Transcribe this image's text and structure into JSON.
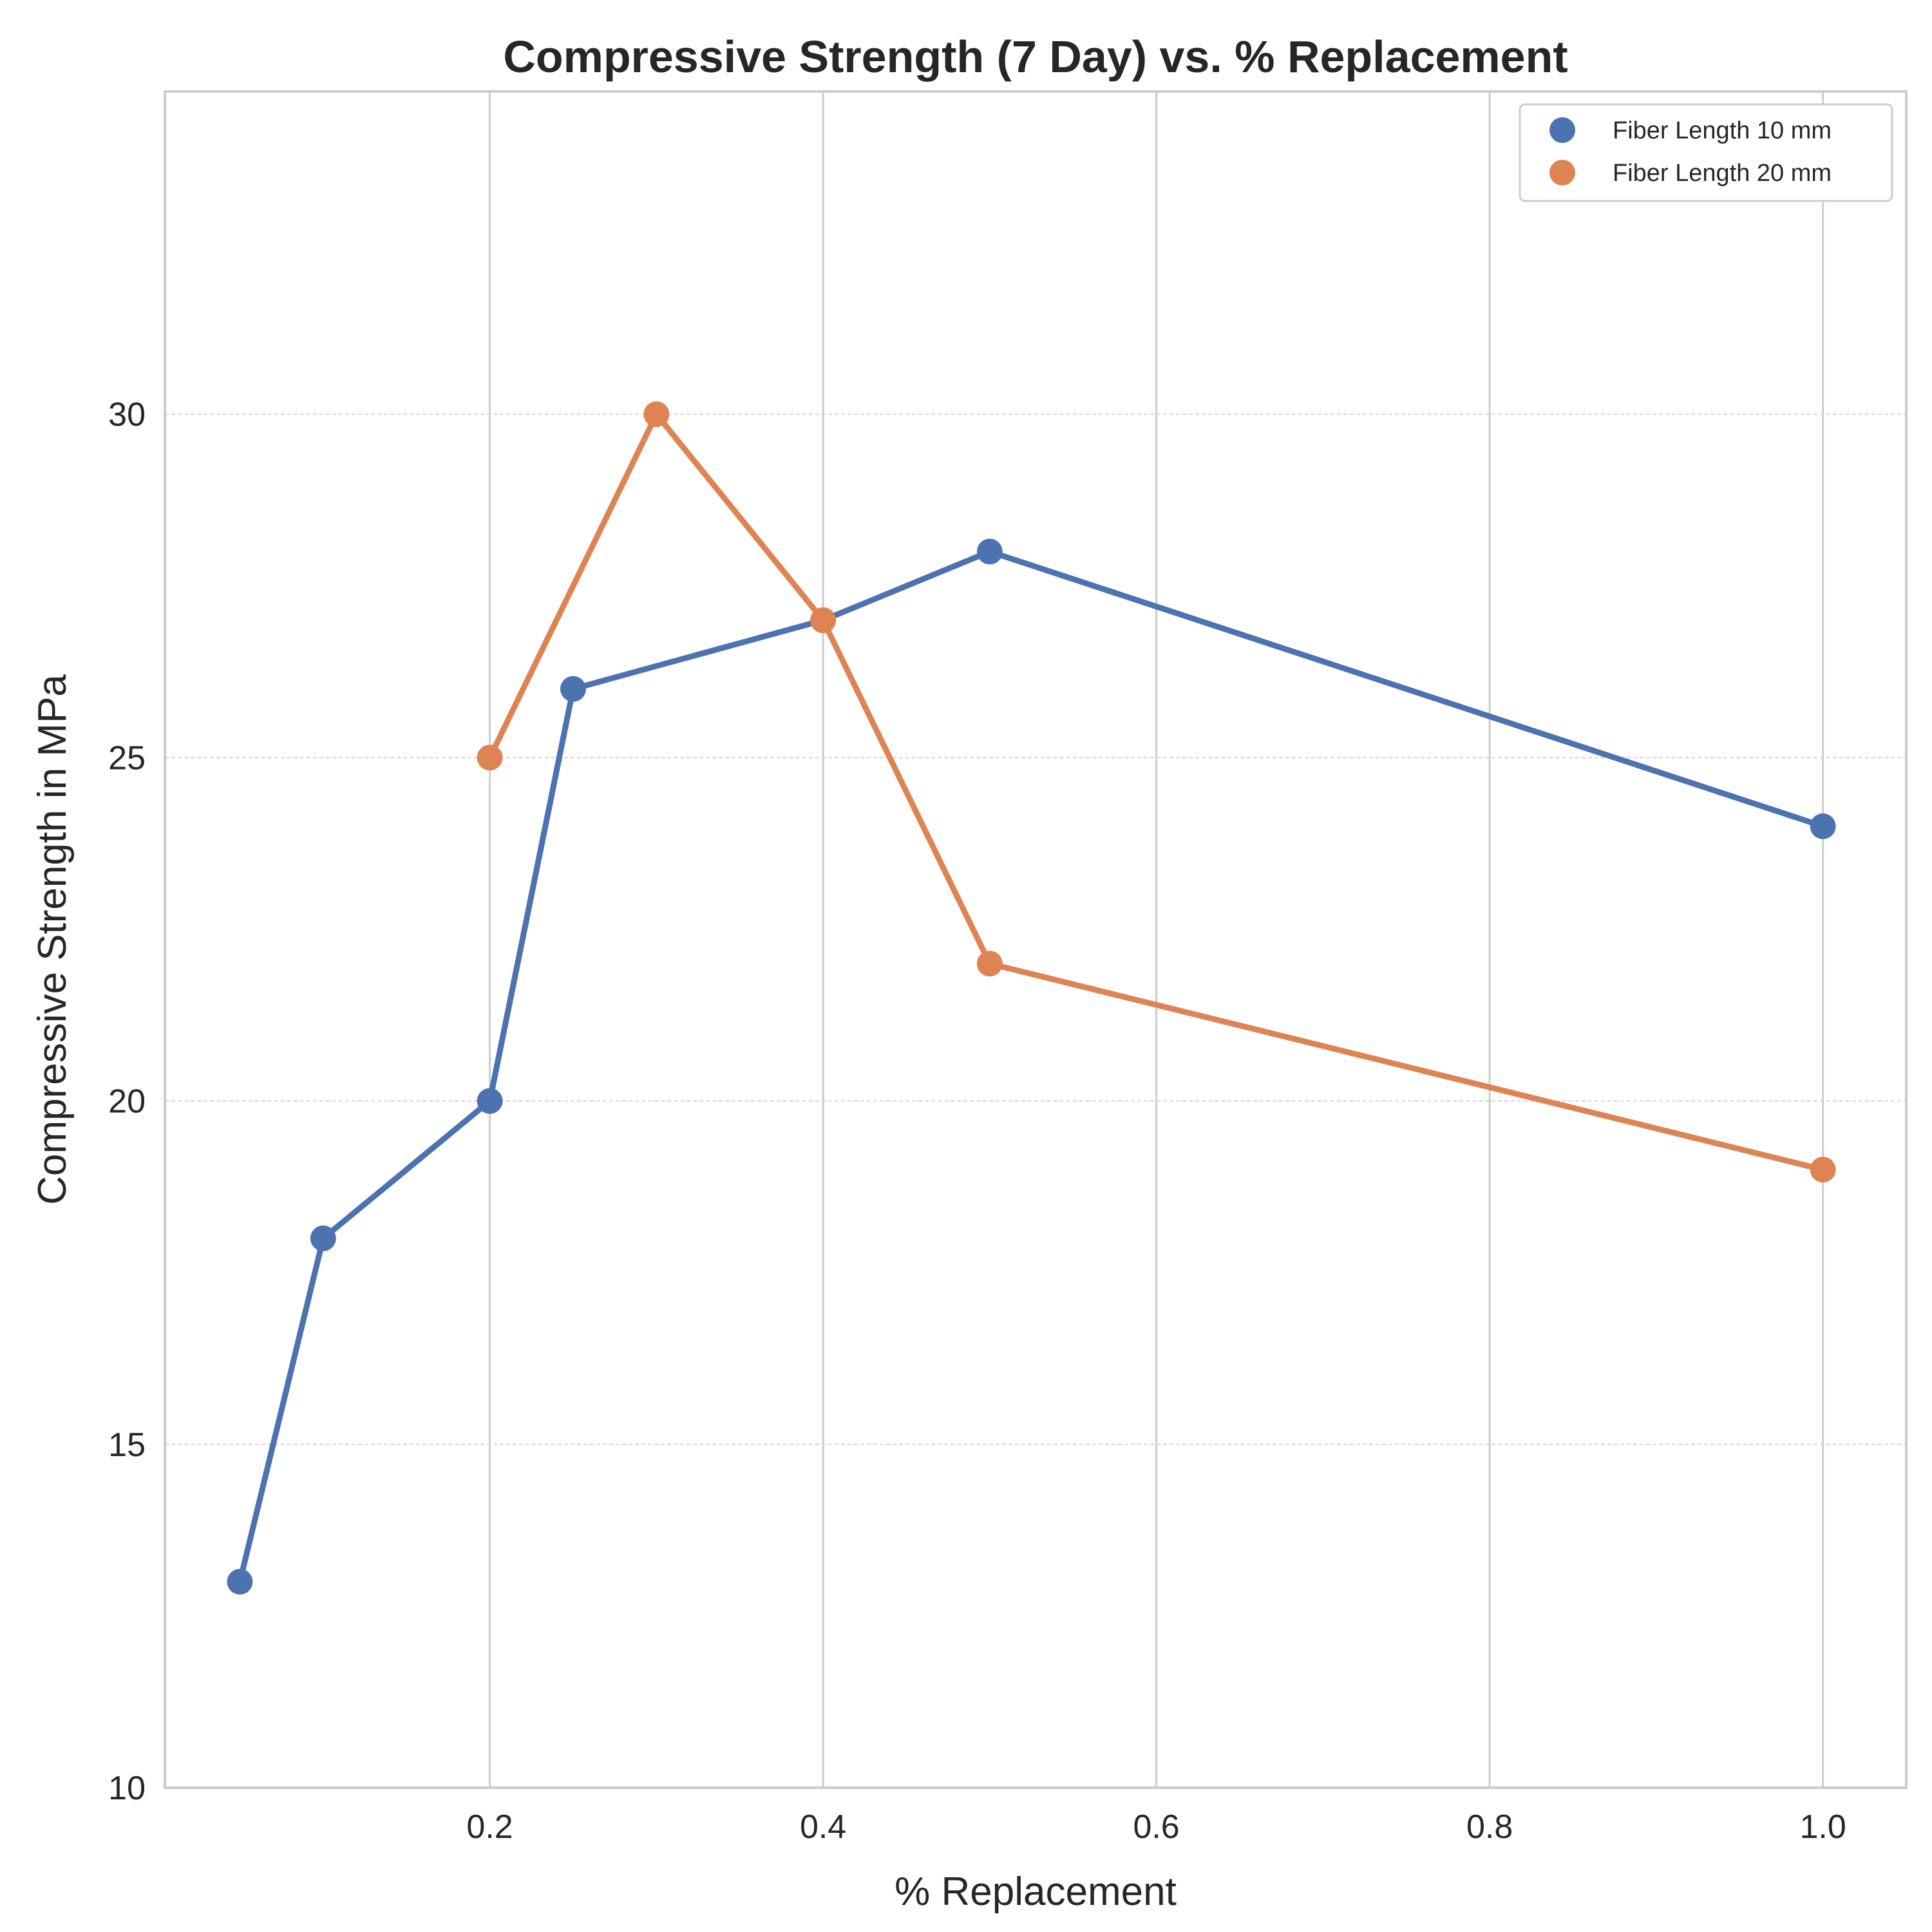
{
  "chart_data": {
    "type": "line",
    "title": "Compressive Strength (7 Day) vs. % Replacement",
    "xlabel": "% Replacement",
    "ylabel": "Compressive Strength in MPa",
    "xlim": [
      0.005,
      1.05
    ],
    "ylim": [
      10,
      34.7
    ],
    "xticks": [
      0.2,
      0.4,
      0.6,
      0.8,
      1.0
    ],
    "xtick_labels": [
      "0.2",
      "0.4",
      "0.6",
      "0.8",
      "1.0"
    ],
    "yticks": [
      10,
      15,
      20,
      25,
      30
    ],
    "ytick_labels": [
      "10",
      "15",
      "20",
      "25",
      "30"
    ],
    "grid": true,
    "legend_position": "top-right",
    "series": [
      {
        "name": "Fiber Length 10 mm",
        "color": "#4c72b0",
        "x": [
          0.05,
          0.1,
          0.2,
          0.25,
          0.4,
          0.5,
          1.0
        ],
        "y": [
          13,
          18,
          20,
          26,
          27,
          28,
          24
        ]
      },
      {
        "name": "Fiber Length 20 mm",
        "color": "#dd8452",
        "x": [
          0.2,
          0.3,
          0.4,
          0.5,
          1.0
        ],
        "y": [
          25,
          30,
          27,
          22,
          19
        ]
      }
    ]
  }
}
